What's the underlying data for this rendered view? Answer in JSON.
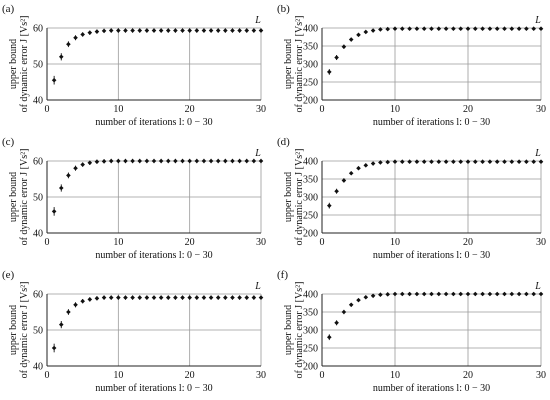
{
  "chart_data": [
    {
      "panel": "(a)",
      "type": "scatter",
      "xlabel": "number of iterations l: 0 − 30",
      "ylabel_line1": "upper bound",
      "ylabel_line2": "of dynamic error J [Vs²]",
      "annotation": "L",
      "xlim": [
        0,
        30
      ],
      "ylim": [
        40,
        60
      ],
      "xticks": [
        0,
        10,
        20,
        30
      ],
      "yticks": [
        40,
        50,
        60
      ],
      "grid": true,
      "x": [
        1,
        2,
        3,
        4,
        5,
        6,
        7,
        8,
        9,
        10,
        11,
        12,
        13,
        14,
        15,
        16,
        17,
        18,
        19,
        20,
        21,
        22,
        23,
        24,
        25,
        26,
        27,
        28,
        29,
        30
      ],
      "y": [
        45.5,
        52,
        55.5,
        57.3,
        58.2,
        58.7,
        59,
        59.2,
        59.3,
        59.3,
        59.3,
        59.3,
        59.3,
        59.3,
        59.3,
        59.3,
        59.3,
        59.3,
        59.3,
        59.3,
        59.3,
        59.3,
        59.3,
        59.3,
        59.3,
        59.3,
        59.3,
        59.3,
        59.3,
        59.3
      ],
      "yerr": [
        1.2,
        1,
        0.8,
        0.7,
        0.6,
        0.6,
        0.6,
        0.6,
        0.6,
        0.6,
        0.6,
        0.6,
        0.6,
        0.6,
        0.6,
        0.6,
        0.6,
        0.6,
        0.6,
        0.6,
        0.6,
        0.6,
        0.6,
        0.6,
        0.6,
        0.6,
        0.6,
        0.6,
        0.6,
        0.6
      ]
    },
    {
      "panel": "(b)",
      "type": "scatter",
      "xlabel": "number of iterations l: 0 − 30",
      "ylabel_line1": "upper bound",
      "ylabel_line2": "of dynamic error J [Vs²]",
      "annotation": "L",
      "xlim": [
        0,
        30
      ],
      "ylim": [
        200,
        400
      ],
      "xticks": [
        0,
        10,
        20,
        30
      ],
      "yticks": [
        200,
        250,
        300,
        350,
        400
      ],
      "grid": true,
      "x": [
        1,
        2,
        3,
        4,
        5,
        6,
        7,
        8,
        9,
        10,
        11,
        12,
        13,
        14,
        15,
        16,
        17,
        18,
        19,
        20,
        21,
        22,
        23,
        24,
        25,
        26,
        27,
        28,
        29,
        30
      ],
      "y": [
        278,
        318,
        348,
        368,
        381,
        389,
        393,
        396,
        397,
        398,
        398,
        398,
        398,
        398,
        398,
        398,
        398,
        398,
        398,
        398,
        398,
        398,
        398,
        398,
        398,
        398,
        398,
        398,
        398,
        398
      ],
      "yerr": [
        8,
        7,
        6,
        5,
        4,
        4,
        4,
        4,
        4,
        4,
        4,
        4,
        4,
        4,
        4,
        4,
        4,
        4,
        4,
        4,
        4,
        4,
        4,
        4,
        4,
        4,
        4,
        4,
        4,
        4
      ]
    },
    {
      "panel": "(c)",
      "type": "scatter",
      "xlabel": "number of iterations l: 0 − 30",
      "ylabel_line1": "upper bound",
      "ylabel_line2": "of dynamic error J [Vs²]",
      "annotation": "L",
      "xlim": [
        0,
        30
      ],
      "ylim": [
        40,
        60
      ],
      "xticks": [
        0,
        10,
        20,
        30
      ],
      "yticks": [
        40,
        50,
        60
      ],
      "grid": true,
      "x": [
        1,
        2,
        3,
        4,
        5,
        6,
        7,
        8,
        9,
        10,
        11,
        12,
        13,
        14,
        15,
        16,
        17,
        18,
        19,
        20,
        21,
        22,
        23,
        24,
        25,
        26,
        27,
        28,
        29,
        30
      ],
      "y": [
        46,
        52.5,
        56,
        58,
        59,
        59.5,
        59.8,
        59.9,
        60,
        60,
        60,
        60,
        60,
        60,
        60,
        60,
        60,
        60,
        60,
        60,
        60,
        60,
        60,
        60,
        60,
        60,
        60,
        60,
        60,
        60
      ],
      "yerr": [
        1.2,
        1,
        0.8,
        0.7,
        0.6,
        0.6,
        0.6,
        0.6,
        0.6,
        0.6,
        0.6,
        0.6,
        0.6,
        0.6,
        0.6,
        0.6,
        0.6,
        0.6,
        0.6,
        0.6,
        0.6,
        0.6,
        0.6,
        0.6,
        0.6,
        0.6,
        0.6,
        0.6,
        0.6,
        0.6
      ]
    },
    {
      "panel": "(d)",
      "type": "scatter",
      "xlabel": "number of iterations l: 0 − 30",
      "ylabel_line1": "upper bound",
      "ylabel_line2": "of dynamic error J [Vs²]",
      "annotation": "L",
      "xlim": [
        0,
        30
      ],
      "ylim": [
        200,
        400
      ],
      "xticks": [
        0,
        10,
        20,
        30
      ],
      "yticks": [
        200,
        250,
        300,
        350,
        400
      ],
      "grid": true,
      "x": [
        1,
        2,
        3,
        4,
        5,
        6,
        7,
        8,
        9,
        10,
        11,
        12,
        13,
        14,
        15,
        16,
        17,
        18,
        19,
        20,
        21,
        22,
        23,
        24,
        25,
        26,
        27,
        28,
        29,
        30
      ],
      "y": [
        276,
        316,
        346,
        366,
        380,
        388,
        393,
        396,
        397,
        398,
        398,
        398,
        398,
        398,
        398,
        398,
        398,
        398,
        398,
        398,
        398,
        398,
        398,
        398,
        398,
        398,
        398,
        398,
        398,
        398
      ],
      "yerr": [
        8,
        7,
        6,
        5,
        4,
        4,
        4,
        4,
        4,
        4,
        4,
        4,
        4,
        4,
        4,
        4,
        4,
        4,
        4,
        4,
        4,
        4,
        4,
        4,
        4,
        4,
        4,
        4,
        4,
        4
      ]
    },
    {
      "panel": "(e)",
      "type": "scatter",
      "xlabel": "number of iterations l: 0 − 30",
      "ylabel_line1": "upper bound",
      "ylabel_line2": "of dynamic error J [Vs²]",
      "annotation": "L",
      "xlim": [
        0,
        30
      ],
      "ylim": [
        40,
        60
      ],
      "xticks": [
        0,
        10,
        20,
        30
      ],
      "yticks": [
        40,
        50,
        60
      ],
      "grid": true,
      "x": [
        1,
        2,
        3,
        4,
        5,
        6,
        7,
        8,
        9,
        10,
        11,
        12,
        13,
        14,
        15,
        16,
        17,
        18,
        19,
        20,
        21,
        22,
        23,
        24,
        25,
        26,
        27,
        28,
        29,
        30
      ],
      "y": [
        45,
        51.5,
        55,
        57,
        58,
        58.5,
        58.8,
        59,
        59,
        59,
        59,
        59,
        59,
        59,
        59,
        59,
        59,
        59,
        59,
        59,
        59,
        59,
        59,
        59,
        59,
        59,
        59,
        59,
        59,
        59
      ],
      "yerr": [
        1.2,
        1,
        0.8,
        0.7,
        0.6,
        0.6,
        0.6,
        0.6,
        0.6,
        0.6,
        0.6,
        0.6,
        0.6,
        0.6,
        0.6,
        0.6,
        0.6,
        0.6,
        0.6,
        0.6,
        0.6,
        0.6,
        0.6,
        0.6,
        0.6,
        0.6,
        0.6,
        0.6,
        0.6,
        0.6
      ]
    },
    {
      "panel": "(f)",
      "type": "scatter",
      "xlabel": "number of iterations l: 0 − 30",
      "ylabel_line1": "upper bound",
      "ylabel_line2": "of dynamic error J [Vs²]",
      "annotation": "L",
      "xlim": [
        0,
        30
      ],
      "ylim": [
        200,
        400
      ],
      "xticks": [
        0,
        10,
        20,
        30
      ],
      "yticks": [
        200,
        250,
        300,
        350,
        400
      ],
      "grid": true,
      "x": [
        1,
        2,
        3,
        4,
        5,
        6,
        7,
        8,
        9,
        10,
        11,
        12,
        13,
        14,
        15,
        16,
        17,
        18,
        19,
        20,
        21,
        22,
        23,
        24,
        25,
        26,
        27,
        28,
        29,
        30
      ],
      "y": [
        280,
        320,
        350,
        370,
        383,
        391,
        395,
        398,
        399,
        400,
        400,
        400,
        400,
        400,
        400,
        400,
        400,
        400,
        400,
        400,
        400,
        400,
        400,
        400,
        400,
        400,
        400,
        400,
        400,
        400
      ],
      "yerr": [
        8,
        7,
        6,
        5,
        4,
        4,
        4,
        4,
        4,
        4,
        4,
        4,
        4,
        4,
        4,
        4,
        4,
        4,
        4,
        4,
        4,
        4,
        4,
        4,
        4,
        4,
        4,
        4,
        4,
        4
      ]
    }
  ]
}
